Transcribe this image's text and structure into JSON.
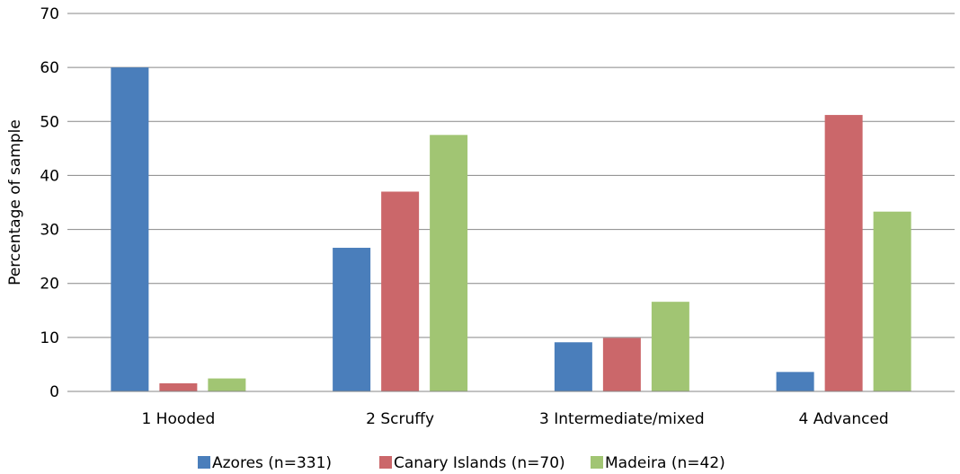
{
  "chart_data": {
    "type": "bar",
    "title": "",
    "xlabel": "",
    "ylabel": "Percentage of sample",
    "ylim": [
      0,
      70
    ],
    "yticks": [
      0,
      10,
      20,
      30,
      40,
      50,
      60,
      70
    ],
    "categories": [
      "1 Hooded",
      "2 Scruffy",
      "3 Intermediate/mixed",
      "4 Advanced"
    ],
    "series": [
      {
        "name": "Azores (n=331)",
        "color": "#4a7ebb",
        "values": [
          60.0,
          26.6,
          9.1,
          3.6
        ]
      },
      {
        "name": "Canary Islands (n=70)",
        "color": "#cb676a",
        "values": [
          1.5,
          37.0,
          9.9,
          51.2
        ]
      },
      {
        "name": "Madeira (n=42)",
        "color": "#a1c573",
        "values": [
          2.4,
          47.5,
          16.6,
          33.3
        ]
      }
    ],
    "grid": true,
    "legend": "bottom"
  }
}
